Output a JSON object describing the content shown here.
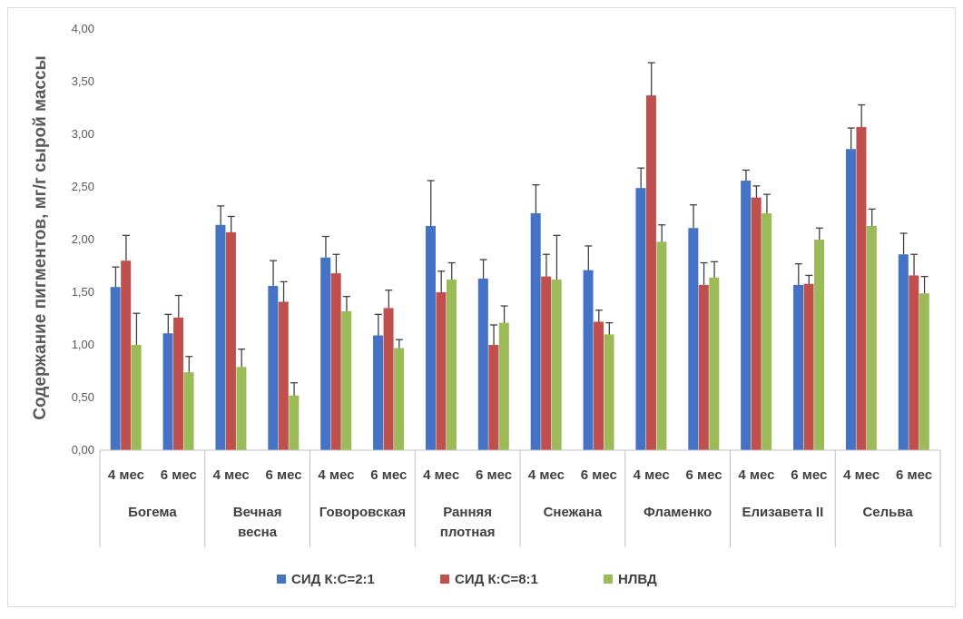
{
  "chart_data": {
    "type": "bar",
    "ylabel": "Содержание пигментов, мг/г сырой массы",
    "xlabel": "",
    "ylim": [
      0,
      4
    ],
    "y_ticks": [
      "0,00",
      "0,50",
      "1,00",
      "1,50",
      "2,00",
      "2,50",
      "3,00",
      "3,50",
      "4,00"
    ],
    "grid": false,
    "legend_position": "bottom",
    "groups": [
      "Богема",
      "Вечная весна",
      "Говоровская",
      "Ранняя плотная",
      "Снежана",
      "Фламенко",
      "Елизавета II",
      "Сельва"
    ],
    "group_label_lines": [
      [
        "Богема"
      ],
      [
        "Вечная",
        "весна"
      ],
      [
        "Говоровская"
      ],
      [
        "Ранняя",
        "плотная"
      ],
      [
        "Снежана"
      ],
      [
        "Фламенко"
      ],
      [
        "Елизавета II"
      ],
      [
        "Сельва"
      ]
    ],
    "subcategories": [
      "4 мес",
      "6 мес"
    ],
    "series": [
      {
        "name": "СИД К:С=2:1",
        "color": "#4472c4",
        "values": [
          1.55,
          1.11,
          2.14,
          1.56,
          1.83,
          1.09,
          2.13,
          1.63,
          2.25,
          1.71,
          2.49,
          2.11,
          2.56,
          1.57,
          2.86,
          1.86
        ],
        "errors": [
          0.19,
          0.18,
          0.18,
          0.24,
          0.2,
          0.2,
          0.43,
          0.18,
          0.27,
          0.23,
          0.19,
          0.22,
          0.1,
          0.2,
          0.2,
          0.2
        ]
      },
      {
        "name": "СИД К:С=8:1",
        "color": "#c0504d",
        "values": [
          1.8,
          1.26,
          2.07,
          1.41,
          1.68,
          1.35,
          1.5,
          1.0,
          1.65,
          1.22,
          3.37,
          1.57,
          2.4,
          1.58,
          3.07,
          1.66
        ],
        "errors": [
          0.24,
          0.21,
          0.15,
          0.19,
          0.18,
          0.17,
          0.2,
          0.19,
          0.21,
          0.11,
          0.31,
          0.21,
          0.11,
          0.08,
          0.21,
          0.2
        ]
      },
      {
        "name": "НЛВД",
        "color": "#9bbb59",
        "values": [
          1.0,
          0.74,
          0.79,
          0.52,
          1.32,
          0.97,
          1.62,
          1.21,
          1.62,
          1.1,
          1.98,
          1.64,
          2.25,
          2.0,
          2.13,
          1.49
        ],
        "errors": [
          0.3,
          0.15,
          0.17,
          0.12,
          0.14,
          0.08,
          0.16,
          0.16,
          0.42,
          0.11,
          0.16,
          0.15,
          0.18,
          0.11,
          0.16,
          0.16
        ]
      }
    ]
  }
}
